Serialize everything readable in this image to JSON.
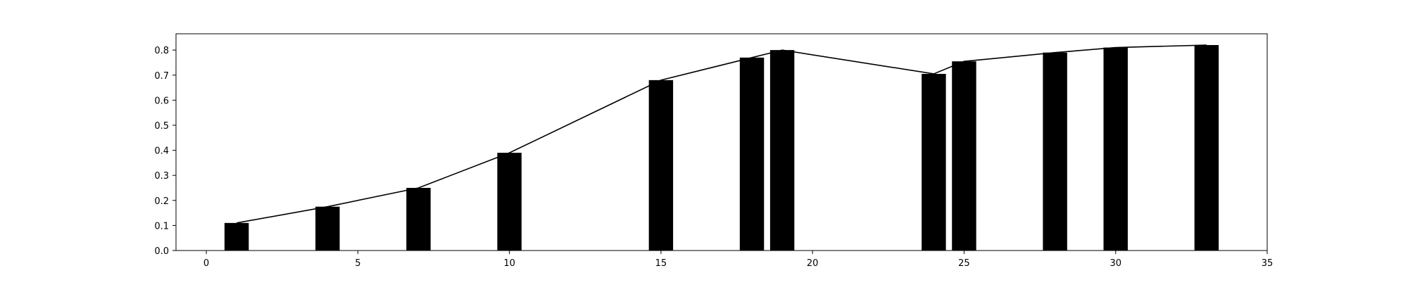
{
  "chart_data": {
    "type": "bar",
    "title": "",
    "xlabel": "",
    "ylabel": "",
    "xlim": [
      -1,
      35
    ],
    "ylim": [
      0,
      0.865
    ],
    "grid": false,
    "x_ticks": [
      0,
      5,
      10,
      15,
      20,
      25,
      30,
      35
    ],
    "y_ticks": [
      0.0,
      0.1,
      0.2,
      0.3,
      0.4,
      0.5,
      0.6,
      0.7,
      0.8
    ],
    "x_tick_labels": [
      "0",
      "5",
      "10",
      "15",
      "20",
      "25",
      "30",
      "35"
    ],
    "y_tick_labels": [
      "0.0",
      "0.1",
      "0.2",
      "0.3",
      "0.4",
      "0.5",
      "0.6",
      "0.7",
      "0.8"
    ],
    "bar_width": 0.8,
    "series": [
      {
        "kind": "bar",
        "color": "#000000",
        "x": [
          1,
          4,
          7,
          10,
          15,
          18,
          19,
          24,
          25,
          28,
          30,
          33
        ],
        "values": [
          0.11,
          0.175,
          0.25,
          0.39,
          0.68,
          0.77,
          0.8,
          0.705,
          0.755,
          0.79,
          0.81,
          0.82
        ]
      },
      {
        "kind": "line",
        "color": "#000000",
        "x": [
          1,
          4,
          7,
          10,
          15,
          18,
          19,
          24,
          25,
          28,
          30,
          33
        ],
        "values": [
          0.11,
          0.175,
          0.25,
          0.39,
          0.68,
          0.77,
          0.8,
          0.705,
          0.755,
          0.79,
          0.81,
          0.82
        ]
      }
    ]
  }
}
